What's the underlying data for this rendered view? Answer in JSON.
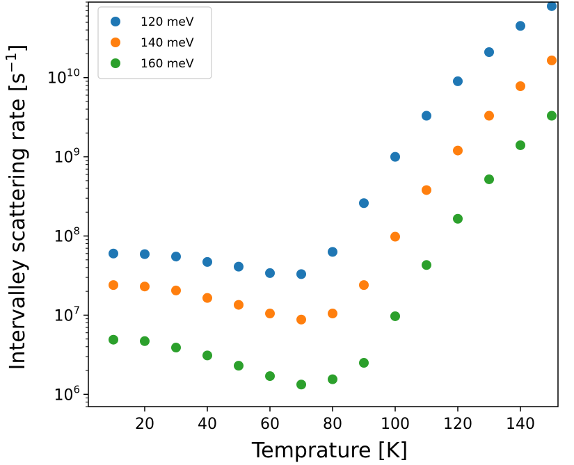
{
  "chart_data": {
    "type": "scatter",
    "title": "",
    "xlabel": "Temprature [K]",
    "ylabel": "Intervalley scattering rate [s",
    "ylabel_exponent": "−1",
    "ylabel_suffix": "]",
    "xscale": "linear",
    "yscale": "log",
    "xlim": [
      2,
      152
    ],
    "ylim": [
      700000,
      90000000000
    ],
    "grid": false,
    "legend_position": "top-left",
    "x_ticks": [
      20,
      40,
      60,
      80,
      100,
      120,
      140
    ],
    "x_tick_labels": [
      "20",
      "40",
      "60",
      "80",
      "100",
      "120",
      "140"
    ],
    "y_ticks": [
      1000000,
      10000000,
      100000000,
      1000000000,
      10000000000
    ],
    "y_tick_labels": [
      {
        "base": "10",
        "exp": "6"
      },
      {
        "base": "10",
        "exp": "7"
      },
      {
        "base": "10",
        "exp": "8"
      },
      {
        "base": "10",
        "exp": "9"
      },
      {
        "base": "10",
        "exp": "10"
      }
    ],
    "x": [
      10,
      20,
      30,
      40,
      50,
      60,
      70,
      80,
      90,
      100,
      110,
      120,
      130,
      140,
      150
    ],
    "series": [
      {
        "name": "120 meV",
        "color": "#1f77b4",
        "values": [
          60000000,
          59000000,
          55000000,
          47000000,
          41000000,
          34000000,
          33000000,
          63000000,
          260000000,
          1000000000,
          3300000000,
          9000000000,
          21000000000,
          45000000000,
          80000000000
        ]
      },
      {
        "name": "140 meV",
        "color": "#ff7f0e",
        "values": [
          24000000,
          23000000,
          20500000,
          16500000,
          13500000,
          10500000,
          8800000,
          10500000,
          24000000,
          98000000,
          380000000,
          1200000000,
          3300000000,
          7800000000,
          16500000000
        ]
      },
      {
        "name": "160 meV",
        "color": "#2ca02c",
        "values": [
          4900000,
          4700000,
          3900000,
          3100000,
          2300000,
          1700000,
          1330000,
          1550000,
          2500000,
          9700000,
          43000000,
          165000000,
          520000000,
          1400000000,
          3300000000
        ]
      }
    ]
  }
}
